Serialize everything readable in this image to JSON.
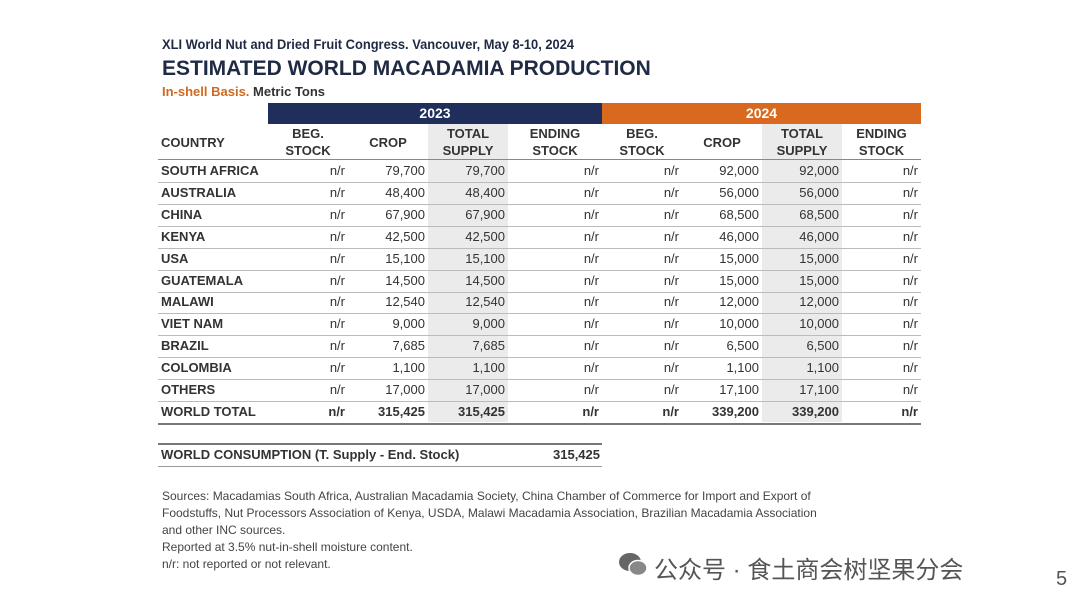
{
  "header": {
    "conference": "XLI World Nut and Dried Fruit Congress. Vancouver, May 8-10, 2024",
    "title": "ESTIMATED WORLD MACADAMIA PRODUCTION",
    "basis": "In-shell Basis.",
    "units": "Metric Tons"
  },
  "table": {
    "years": [
      "2023",
      "2024"
    ],
    "columns": [
      [
        "COUNTRY"
      ],
      [
        "BEG.",
        "STOCK"
      ],
      [
        "CROP"
      ],
      [
        "TOTAL",
        "SUPPLY"
      ],
      [
        "ENDING",
        "STOCK"
      ],
      [
        "BEG.",
        "STOCK"
      ],
      [
        "CROP"
      ],
      [
        "TOTAL",
        "SUPPLY"
      ],
      [
        "ENDING",
        "STOCK"
      ]
    ],
    "rows": [
      [
        "SOUTH AFRICA",
        "n/r",
        "79,700",
        "79,700",
        "n/r",
        "n/r",
        "92,000",
        "92,000",
        "n/r"
      ],
      [
        "AUSTRALIA",
        "n/r",
        "48,400",
        "48,400",
        "n/r",
        "n/r",
        "56,000",
        "56,000",
        "n/r"
      ],
      [
        "CHINA",
        "n/r",
        "67,900",
        "67,900",
        "n/r",
        "n/r",
        "68,500",
        "68,500",
        "n/r"
      ],
      [
        "KENYA",
        "n/r",
        "42,500",
        "42,500",
        "n/r",
        "n/r",
        "46,000",
        "46,000",
        "n/r"
      ],
      [
        "USA",
        "n/r",
        "15,100",
        "15,100",
        "n/r",
        "n/r",
        "15,000",
        "15,000",
        "n/r"
      ],
      [
        "GUATEMALA",
        "n/r",
        "14,500",
        "14,500",
        "n/r",
        "n/r",
        "15,000",
        "15,000",
        "n/r"
      ],
      [
        "MALAWI",
        "n/r",
        "12,540",
        "12,540",
        "n/r",
        "n/r",
        "12,000",
        "12,000",
        "n/r"
      ],
      [
        "VIET NAM",
        "n/r",
        "9,000",
        "9,000",
        "n/r",
        "n/r",
        "10,000",
        "10,000",
        "n/r"
      ],
      [
        "BRAZIL",
        "n/r",
        "7,685",
        "7,685",
        "n/r",
        "n/r",
        "6,500",
        "6,500",
        "n/r"
      ],
      [
        "COLOMBIA",
        "n/r",
        "1,100",
        "1,100",
        "n/r",
        "n/r",
        "1,100",
        "1,100",
        "n/r"
      ],
      [
        "OTHERS",
        "n/r",
        "17,000",
        "17,000",
        "n/r",
        "n/r",
        "17,100",
        "17,100",
        "n/r"
      ]
    ],
    "total": [
      "WORLD TOTAL",
      "n/r",
      "315,425",
      "315,425",
      "n/r",
      "n/r",
      "339,200",
      "339,200",
      "n/r"
    ]
  },
  "consumption": {
    "label": "WORLD CONSUMPTION (T. Supply - End. Stock)",
    "value": "315,425"
  },
  "notes": [
    "Sources: Macadamias South Africa, Australian Macadamia Society, China Chamber of Commerce for Import and Export of",
    "Foodstuffs, Nut Processors Association of Kenya, USDA, Malawi Macadamia Association, Brazilian Macadamia Association",
    "and other INC sources.",
    "Reported at 3.5% nut-in-shell moisture content.",
    "n/r: not reported or not relevant."
  ],
  "watermark": "公众号 · 食土商会树坚果分会",
  "page_number": "5"
}
